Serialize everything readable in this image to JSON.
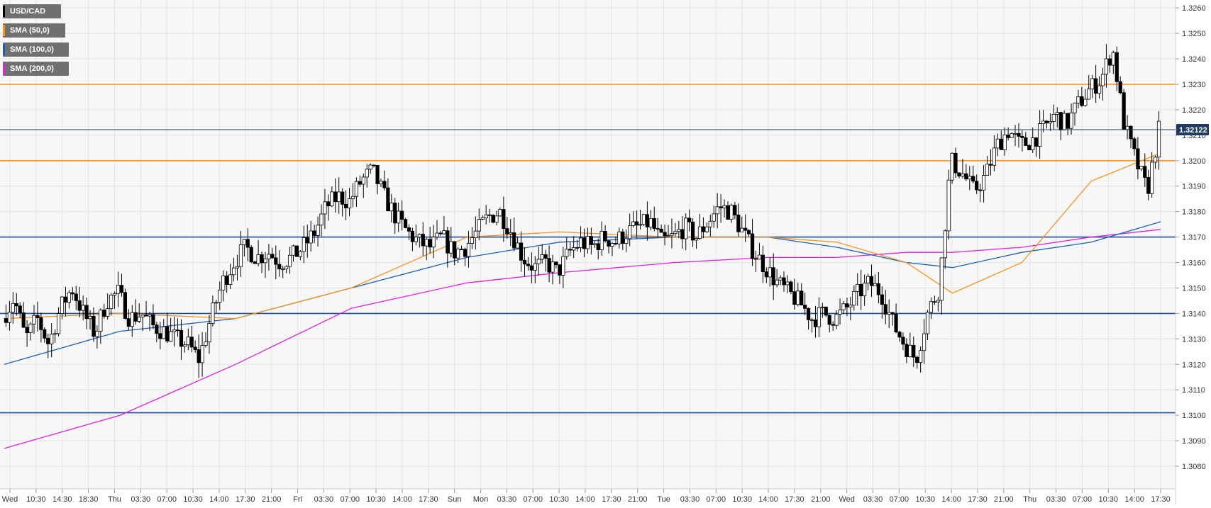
{
  "chart_data": {
    "type": "candlestick",
    "instrument": "USD/CAD",
    "legend": [
      {
        "label": "USD/CAD",
        "color": "#000000"
      },
      {
        "label": "SMA (50,0)",
        "color": "#f7931e"
      },
      {
        "label": "SMA (100,0)",
        "color": "#1c5fb5"
      },
      {
        "label": "SMA (200,0)",
        "color": "#e020e0"
      }
    ],
    "ylim": [
      1.3075,
      1.3262
    ],
    "y_ticks": [
      "1.3080",
      "1.3090",
      "1.3100",
      "1.3110",
      "1.3120",
      "1.3130",
      "1.3140",
      "1.3150",
      "1.3160",
      "1.3170",
      "1.3180",
      "1.3190",
      "1.3200",
      "1.3210",
      "1.3220",
      "1.3230",
      "1.3240",
      "1.3250",
      "1.3260"
    ],
    "x_ticks": [
      "Wed",
      "10:30",
      "14:30",
      "18:30",
      "Thu",
      "03:30",
      "07:00",
      "10:30",
      "14:00",
      "17:30",
      "21:00",
      "Fri",
      "03:30",
      "07:00",
      "10:30",
      "14:00",
      "17:30",
      "Sun",
      "Mon",
      "03:30",
      "07:00",
      "10:30",
      "14:00",
      "17:30",
      "21:00",
      "Tue",
      "03:30",
      "07:00",
      "10:30",
      "14:00",
      "17:30",
      "21:00",
      "Wed",
      "03:30",
      "07:00",
      "10:30",
      "14:00",
      "17:30",
      "21:00",
      "Thu",
      "03:30",
      "07:00",
      "10:30",
      "14:00",
      "17:30"
    ],
    "last_price": "1.32122",
    "last_value": 1.32122,
    "horizontal_levels": [
      {
        "value": 1.323,
        "color": "#f7931e"
      },
      {
        "value": 1.32,
        "color": "#f7931e"
      },
      {
        "value": 1.317,
        "color": "#1c4fa0"
      },
      {
        "value": 1.314,
        "color": "#1c4fa0"
      },
      {
        "value": 1.3101,
        "color": "#1c4fa0"
      }
    ],
    "price_path": [
      1.3138,
      1.3146,
      1.313,
      1.3138,
      1.3128,
      1.3142,
      1.315,
      1.314,
      1.3132,
      1.3145,
      1.3148,
      1.3138,
      1.314,
      1.3135,
      1.3133,
      1.313,
      1.3128,
      1.3122,
      1.3138,
      1.3152,
      1.316,
      1.3166,
      1.3162,
      1.3164,
      1.316,
      1.3162,
      1.3166,
      1.3172,
      1.3182,
      1.3186,
      1.3184,
      1.3192,
      1.3196,
      1.3186,
      1.3178,
      1.3172,
      1.3168,
      1.3166,
      1.317,
      1.3164,
      1.3166,
      1.3172,
      1.3178,
      1.318,
      1.3172,
      1.3162,
      1.3158,
      1.316,
      1.3156,
      1.3164,
      1.3168,
      1.3166,
      1.317,
      1.3168,
      1.3172,
      1.3174,
      1.3176,
      1.3168,
      1.317,
      1.3174,
      1.317,
      1.3176,
      1.3182,
      1.318,
      1.3172,
      1.3164,
      1.3158,
      1.3152,
      1.3148,
      1.3144,
      1.3138,
      1.314,
      1.3138,
      1.3142,
      1.3148,
      1.3152,
      1.3148,
      1.3136,
      1.3128,
      1.3122,
      1.314,
      1.315,
      1.32,
      1.3195,
      1.3188,
      1.3194,
      1.3206,
      1.3212,
      1.3206,
      1.3208,
      1.3212,
      1.3218,
      1.3214,
      1.3222,
      1.3228,
      1.3232,
      1.3244,
      1.3214,
      1.32,
      1.3188,
      1.3212
    ],
    "sma_50": [
      [
        0,
        1.3138
      ],
      [
        10,
        1.314
      ],
      [
        20,
        1.3138
      ],
      [
        30,
        1.315
      ],
      [
        40,
        1.317
      ],
      [
        48,
        1.3172
      ],
      [
        58,
        1.317
      ],
      [
        66,
        1.317
      ],
      [
        72,
        1.3168
      ],
      [
        78,
        1.316
      ],
      [
        82,
        1.3148
      ],
      [
        88,
        1.316
      ],
      [
        94,
        1.3192
      ],
      [
        100,
        1.3203
      ]
    ],
    "sma_100": [
      [
        0,
        1.312
      ],
      [
        10,
        1.3133
      ],
      [
        20,
        1.3138
      ],
      [
        30,
        1.315
      ],
      [
        40,
        1.3162
      ],
      [
        48,
        1.3168
      ],
      [
        58,
        1.317
      ],
      [
        66,
        1.317
      ],
      [
        72,
        1.3166
      ],
      [
        78,
        1.316
      ],
      [
        82,
        1.3158
      ],
      [
        88,
        1.3164
      ],
      [
        94,
        1.3168
      ],
      [
        100,
        1.3176
      ]
    ],
    "sma_200": [
      [
        0,
        1.3087
      ],
      [
        10,
        1.31
      ],
      [
        20,
        1.312
      ],
      [
        30,
        1.3142
      ],
      [
        40,
        1.3152
      ],
      [
        48,
        1.3156
      ],
      [
        58,
        1.316
      ],
      [
        66,
        1.3162
      ],
      [
        72,
        1.3162
      ],
      [
        78,
        1.3164
      ],
      [
        82,
        1.3164
      ],
      [
        88,
        1.3166
      ],
      [
        94,
        1.317
      ],
      [
        100,
        1.3173
      ]
    ]
  }
}
